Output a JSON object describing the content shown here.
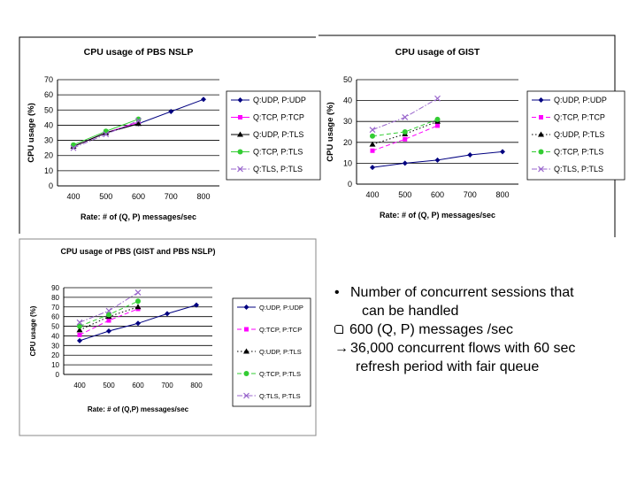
{
  "chart_data": [
    {
      "type": "line",
      "title": "CPU usage of PBS NSLP",
      "xlabel": "Rate: # of (Q, P) messages/sec",
      "ylabel": "CPU usage (%)",
      "xlim": [
        400,
        800
      ],
      "ylim": [
        0,
        70
      ],
      "yticks": [
        "0",
        "10",
        "20",
        "30",
        "40",
        "50",
        "60",
        "70"
      ],
      "categories": [
        "400",
        "500",
        "600",
        "700",
        "800"
      ],
      "grid": true,
      "legend": "right",
      "series": [
        {
          "name": "Q:UDP, P:UDP",
          "x": [
            400,
            500,
            600,
            700,
            800
          ],
          "values": [
            26,
            35,
            41,
            49,
            57
          ],
          "color": "#000080",
          "marker": "diamond",
          "dash": "solid"
        },
        {
          "name": "Q:TCP, P:TCP",
          "x": [
            400,
            500,
            600
          ],
          "values": [
            26,
            35,
            42
          ],
          "color": "#ff00ff",
          "marker": "square",
          "dash": "solid"
        },
        {
          "name": "Q:UDP, P:TLS",
          "x": [
            400,
            500,
            600
          ],
          "values": [
            26,
            35,
            41
          ],
          "color": "#000000",
          "marker": "triangle",
          "dash": "solid"
        },
        {
          "name": "Q:TCP, P:TLS",
          "x": [
            400,
            500,
            600
          ],
          "values": [
            27,
            36,
            44
          ],
          "color": "#33cc33",
          "marker": "circle",
          "dash": "solid"
        },
        {
          "name": "Q:TLS, P:TLS",
          "x": [
            400,
            500,
            600
          ],
          "values": [
            25,
            34,
            43
          ],
          "color": "#9966cc",
          "marker": "x",
          "dash": "dashdot"
        }
      ]
    },
    {
      "type": "line",
      "title": "CPU usage of GIST",
      "xlabel": "Rate: # of (Q, P) messages/sec",
      "ylabel": "CPU usage (%)",
      "xlim": [
        400,
        800
      ],
      "ylim": [
        0,
        50
      ],
      "yticks": [
        "0",
        "10",
        "20",
        "30",
        "40",
        "50"
      ],
      "categories": [
        "400",
        "500",
        "600",
        "700",
        "800"
      ],
      "grid": true,
      "legend": "right",
      "series": [
        {
          "name": "Q:UDP, P:UDP",
          "x": [
            400,
            500,
            600,
            700,
            800
          ],
          "values": [
            8,
            10,
            11.5,
            14,
            15.5
          ],
          "color": "#000080",
          "marker": "diamond",
          "dash": "solid"
        },
        {
          "name": "Q:TCP, P:TCP",
          "x": [
            400,
            500,
            600
          ],
          "values": [
            16,
            21.5,
            28
          ],
          "color": "#ff00ff",
          "marker": "square",
          "dash": "dashed"
        },
        {
          "name": "Q:UDP, P:TLS",
          "x": [
            400,
            500,
            600
          ],
          "values": [
            19,
            24,
            30
          ],
          "color": "#000000",
          "marker": "triangle",
          "dash": "dotted"
        },
        {
          "name": "Q:TCP, P:TLS",
          "x": [
            400,
            500,
            600
          ],
          "values": [
            23,
            25,
            31
          ],
          "color": "#33cc33",
          "marker": "circle",
          "dash": "dashed"
        },
        {
          "name": "Q:TLS, P:TLS",
          "x": [
            400,
            500,
            600
          ],
          "values": [
            26,
            32,
            41
          ],
          "color": "#9966cc",
          "marker": "x",
          "dash": "dashdot"
        }
      ]
    },
    {
      "type": "line",
      "title": "CPU usage of PBS (GIST and PBS NSLP)",
      "xlabel": "Rate: # of (Q,P) messages/sec",
      "ylabel": "CPU usage (%)",
      "xlim": [
        400,
        800
      ],
      "ylim": [
        0,
        90
      ],
      "yticks": [
        "0",
        "10",
        "20",
        "30",
        "40",
        "50",
        "60",
        "70",
        "80",
        "90"
      ],
      "categories": [
        "400",
        "500",
        "600",
        "700",
        "800"
      ],
      "grid": true,
      "legend": "right",
      "series": [
        {
          "name": "Q:UDP, P:UDP",
          "x": [
            400,
            500,
            600,
            700,
            800
          ],
          "values": [
            35,
            45,
            53,
            63,
            72
          ],
          "color": "#000080",
          "marker": "diamond",
          "dash": "solid"
        },
        {
          "name": "Q:TCP, P:TCP",
          "x": [
            400,
            500,
            600
          ],
          "values": [
            41,
            56,
            68
          ],
          "color": "#ff00ff",
          "marker": "square",
          "dash": "dashed"
        },
        {
          "name": "Q:UDP, P:TLS",
          "x": [
            400,
            500,
            600
          ],
          "values": [
            46,
            60,
            70
          ],
          "color": "#000000",
          "marker": "triangle",
          "dash": "dotted"
        },
        {
          "name": "Q:TCP, P:TLS",
          "x": [
            400,
            500,
            600
          ],
          "values": [
            50,
            62,
            76
          ],
          "color": "#33cc33",
          "marker": "circle",
          "dash": "dashed"
        },
        {
          "name": "Q:TLS, P:TLS",
          "x": [
            400,
            500,
            600
          ],
          "values": [
            54,
            66,
            85
          ],
          "color": "#9966cc",
          "marker": "x",
          "dash": "dashdot"
        }
      ]
    }
  ],
  "bullets": {
    "line1": "Number of concurrent sessions that",
    "line2": "can be handled",
    "line3": "600 (Q, P) messages /sec",
    "line4": "36,000 concurrent flows with 60 sec",
    "line5": "refresh period with fair queue",
    "bullet_glyph": "•",
    "arrow_glyph": "→"
  }
}
